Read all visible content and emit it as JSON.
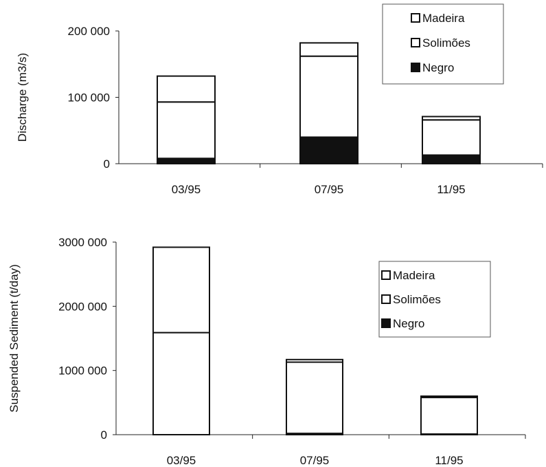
{
  "chart_data": [
    {
      "type": "bar",
      "stacked": true,
      "title": "",
      "xlabel": "",
      "ylabel": "Discharge (m3/s)",
      "categories": [
        "03/95",
        "07/95",
        "11/95"
      ],
      "ylim": [
        0,
        200000
      ],
      "yticks": [
        0,
        100000,
        200000
      ],
      "ytick_labels": [
        "0",
        "100 000",
        "200 000"
      ],
      "legend_position": "top-right",
      "series": [
        {
          "name": "Negro",
          "values": [
            8000,
            40000,
            13000
          ],
          "color": "#111111"
        },
        {
          "name": "Solimões",
          "values": [
            85000,
            122000,
            53000
          ],
          "color": "#ffffff"
        },
        {
          "name": "Madeira",
          "values": [
            39000,
            20000,
            5000
          ],
          "color": "#ffffff"
        }
      ],
      "legend_order": [
        "Madeira",
        "Solimões",
        "Negro"
      ],
      "grid": false
    },
    {
      "type": "bar",
      "stacked": true,
      "title": "",
      "xlabel": "",
      "ylabel": "Suspended Sediment (t/day)",
      "categories": [
        "03/95",
        "07/95",
        "11/95"
      ],
      "ylim": [
        0,
        3000000
      ],
      "yticks": [
        0,
        1000000,
        2000000,
        3000000
      ],
      "ytick_labels": [
        "0",
        "1000 000",
        "2000 000",
        "3000 000"
      ],
      "legend_position": "middle-right",
      "series": [
        {
          "name": "Negro",
          "values": [
            0,
            20000,
            10000
          ],
          "color": "#111111"
        },
        {
          "name": "Solimões",
          "values": [
            1590000,
            1110000,
            570000
          ],
          "color": "#ffffff"
        },
        {
          "name": "Madeira",
          "values": [
            1330000,
            40000,
            20000
          ],
          "color": "#ffffff"
        }
      ],
      "legend_order": [
        "Madeira",
        "Solimões",
        "Negro"
      ],
      "grid": false
    }
  ]
}
